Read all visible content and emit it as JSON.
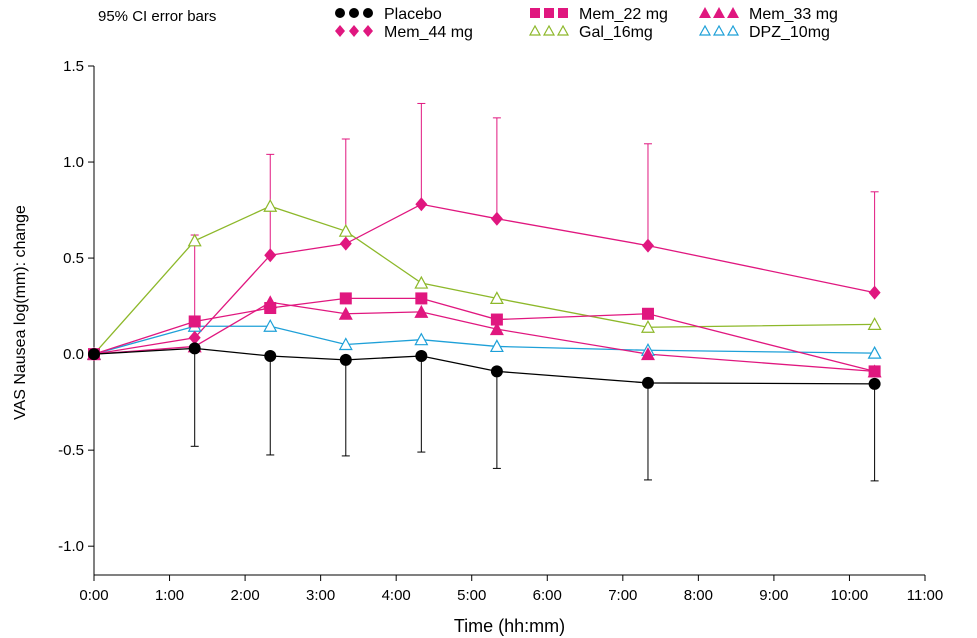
{
  "note": "95% CI error bars",
  "chart_data": {
    "type": "line",
    "title": "",
    "xlabel": "Time (hh:mm)",
    "ylabel": "VAS Nausea log(mm): change",
    "xlim": [
      "0:00",
      "11:00"
    ],
    "ylim": [
      -1.15,
      1.5
    ],
    "x_tick_labels": [
      "0:00",
      "1:00",
      "2:00",
      "3:00",
      "4:00",
      "5:00",
      "6:00",
      "7:00",
      "8:00",
      "9:00",
      "10:00",
      "11:00"
    ],
    "x_tick_values_hours": [
      0,
      1,
      2,
      3,
      4,
      5,
      6,
      7,
      8,
      9,
      10,
      11
    ],
    "y_tick_labels": [
      "1.5",
      "1.0",
      "0.5",
      "0.0",
      "-0.5",
      "-1.0"
    ],
    "y_tick_values": [
      1.5,
      1.0,
      0.5,
      0.0,
      -0.5,
      -1.0
    ],
    "x_times": [
      "0:00",
      "1:20",
      "2:20",
      "3:20",
      "4:20",
      "5:20",
      "7:20",
      "10:20"
    ],
    "x_hours": [
      0,
      1.333,
      2.333,
      3.333,
      4.333,
      5.333,
      7.333,
      10.333
    ],
    "legend_position": "top",
    "series": [
      {
        "name": "Placebo",
        "color": "#000000",
        "marker": "filled-circle",
        "values": [
          0.0,
          0.03,
          -0.01,
          -0.03,
          -0.01,
          -0.09,
          -0.15,
          -0.155
        ],
        "error_lower": [
          null,
          -0.48,
          -0.525,
          -0.53,
          -0.51,
          -0.595,
          -0.655,
          -0.66
        ],
        "error_upper": null
      },
      {
        "name": "Mem_22 mg",
        "color": "#E0177F",
        "marker": "filled-square",
        "values": [
          0.0,
          0.17,
          0.24,
          0.29,
          0.29,
          0.18,
          0.21,
          -0.09
        ]
      },
      {
        "name": "Mem_33 mg",
        "color": "#E0177F",
        "marker": "filled-triangle",
        "values": [
          0.0,
          0.04,
          0.27,
          0.21,
          0.22,
          0.13,
          0.0,
          -0.09
        ]
      },
      {
        "name": "Mem_44 mg",
        "color": "#E0177F",
        "marker": "filled-diamond",
        "values": [
          0.0,
          0.085,
          0.515,
          0.575,
          0.78,
          0.705,
          0.565,
          0.32
        ],
        "error_lower": null,
        "error_upper": [
          null,
          0.62,
          1.04,
          1.12,
          1.305,
          1.23,
          1.095,
          0.845
        ]
      },
      {
        "name": "Gal_16mg",
        "color": "#8DB82A",
        "marker": "open-triangle",
        "values": [
          0.0,
          0.59,
          0.77,
          0.64,
          0.37,
          0.29,
          0.14,
          0.155
        ]
      },
      {
        "name": "DPZ_10mg",
        "color": "#1EA0D8",
        "marker": "open-triangle",
        "values": [
          0.0,
          0.145,
          0.145,
          0.05,
          0.075,
          0.04,
          0.02,
          0.005
        ]
      }
    ]
  }
}
